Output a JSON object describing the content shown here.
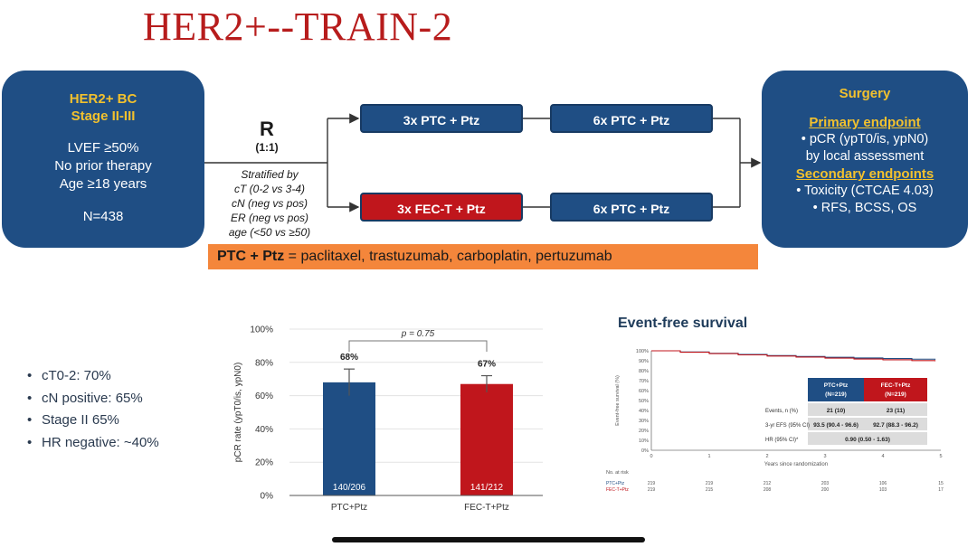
{
  "slide": {
    "title": "HER2+--TRAIN-2",
    "population": {
      "line1": "HER2+ BC",
      "line2": "Stage II-III",
      "criteria": [
        "LVEF ≥50%",
        "No prior therapy",
        "Age ≥18 years"
      ],
      "n": "N=438"
    },
    "randomization": {
      "label": "R",
      "ratio": "(1:1)",
      "stratified_title": "Stratified by",
      "stratified_lines": [
        "cT (0-2 vs 3-4)",
        "cN (neg vs pos)",
        "ER (neg vs pos)",
        "age (<50 vs ≥50)"
      ]
    },
    "arms": {
      "top_first": "3x PTC + Ptz",
      "top_second": "6x PTC + Ptz",
      "bottom_first": "3x FEC-T + Ptz",
      "bottom_second": "6x PTC + Ptz"
    },
    "outcome": {
      "surgery": "Surgery",
      "primary_title": "Primary endpoint",
      "primary_lines": [
        "• pCR (ypT0/is, ypN0)",
        "by local assessment"
      ],
      "secondary_title": "Secondary endpoints",
      "secondary_lines": [
        "• Toxicity (CTCAE 4.03)",
        "• RFS, BCSS, OS"
      ]
    },
    "legend": {
      "abbr": "PTC + Ptz",
      "definition": " = paclitaxel, trastuzumab, carboplatin, pertuzumab"
    },
    "bullets": [
      "cT0-2: 70%",
      "cN positive: 65%",
      "Stage II 65%",
      "HR negative: ~40%"
    ],
    "efs": {
      "title": "Event-free survival",
      "table": {
        "col1_name": "PTC+Ptz",
        "col1_n": "(N=219)",
        "col2_name": "FEC-T+Ptz",
        "col2_n": "(N=219)",
        "rows": [
          {
            "label": "Events, n (%)",
            "v1": "21 (10)",
            "v2": "23 (11)"
          },
          {
            "label": "3-yr EFS (95% CI)",
            "v1": "93.5 (90.4 - 96.6)",
            "v2": "92.7 (88.3 - 96.2)"
          }
        ],
        "hr_label": "HR (95% CI)*",
        "hr_value": "0.90 (0.50 - 1.63)"
      },
      "at_risk_title": "No. at risk",
      "at_risk": [
        {
          "name": "PTC+Ptz",
          "values": [
            "219",
            "219",
            "212",
            "203",
            "106",
            "15"
          ]
        },
        {
          "name": "FEC-T+Ptz",
          "values": [
            "219",
            "215",
            "208",
            "200",
            "103",
            "17"
          ]
        }
      ]
    },
    "colors": {
      "navy": "#1f4e84",
      "red": "#c0161c",
      "orange": "#f4863b",
      "gold": "#f2c12e",
      "title_red": "#b71c1c"
    }
  },
  "chart_data": [
    {
      "type": "bar",
      "categories": [
        "PTC+Ptz",
        "FEC-T+Ptz"
      ],
      "values": [
        68,
        67
      ],
      "value_labels": [
        "68%",
        "67%"
      ],
      "error_upper": [
        76,
        72
      ],
      "error_lower": [
        60,
        62
      ],
      "count_labels": [
        "140/206",
        "141/212"
      ],
      "bar_colors": [
        "#1f4e84",
        "#c0161c"
      ],
      "ylabel": "pCR rate (ypT0/is, ypN0)",
      "ylim": [
        0,
        100
      ],
      "yticks": [
        0,
        20,
        40,
        60,
        80,
        100
      ],
      "ytick_labels": [
        "0%",
        "20%",
        "40%",
        "60%",
        "80%",
        "100%"
      ],
      "annotation": "p = 0.75"
    },
    {
      "type": "line",
      "title": "Event-free survival",
      "xlabel": "Years since randomization",
      "ylabel": "Event-free survival (%)",
      "xlim": [
        0,
        5
      ],
      "ylim": [
        0,
        100
      ],
      "xticks": [
        0,
        1,
        2,
        3,
        4,
        5
      ],
      "yticks": [
        0,
        10,
        20,
        30,
        40,
        50,
        60,
        70,
        80,
        90,
        100
      ],
      "ytick_labels": [
        "0%",
        "10%",
        "20%",
        "30%",
        "40%",
        "50%",
        "60%",
        "70%",
        "80%",
        "90%",
        "100%"
      ],
      "series": [
        {
          "name": "PTC+Ptz",
          "color": "#1f4e84",
          "x": [
            0,
            0.5,
            1,
            1.5,
            2,
            2.5,
            3,
            3.5,
            4,
            4.5,
            4.9
          ],
          "y": [
            100,
            98.8,
            97.5,
            96.3,
            95.2,
            94.3,
            93.5,
            92.8,
            92.2,
            91.6,
            91.0
          ]
        },
        {
          "name": "FEC-T+Ptz",
          "color": "#c0161c",
          "x": [
            0,
            0.5,
            1,
            1.5,
            2,
            2.5,
            3,
            3.5,
            4,
            4.5,
            4.9
          ],
          "y": [
            100,
            98.6,
            97.2,
            95.9,
            94.7,
            93.7,
            92.7,
            91.8,
            91.0,
            90.2,
            89.5
          ]
        }
      ]
    }
  ]
}
